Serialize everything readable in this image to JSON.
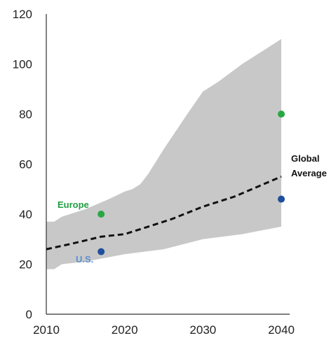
{
  "chart_data": {
    "type": "line",
    "title": "",
    "xlabel": "",
    "ylabel": "",
    "xlim": [
      2010,
      2040
    ],
    "ylim": [
      0,
      120
    ],
    "x_ticks": [
      2010,
      2020,
      2030,
      2040
    ],
    "y_ticks": [
      0,
      20,
      40,
      60,
      80,
      100,
      120
    ],
    "grid": false,
    "band": {
      "color": "#c8c8c8",
      "upper": [
        [
          2010,
          37
        ],
        [
          2011,
          37
        ],
        [
          2012,
          39
        ],
        [
          2015,
          42
        ],
        [
          2018,
          46
        ],
        [
          2020,
          49
        ],
        [
          2021,
          50
        ],
        [
          2022,
          52
        ],
        [
          2023,
          56
        ],
        [
          2025,
          66
        ],
        [
          2028,
          80
        ],
        [
          2030,
          89
        ],
        [
          2032,
          93
        ],
        [
          2035,
          100
        ],
        [
          2038,
          106
        ],
        [
          2040,
          110
        ]
      ],
      "lower": [
        [
          2010,
          18
        ],
        [
          2011,
          18
        ],
        [
          2012,
          20
        ],
        [
          2015,
          21
        ],
        [
          2020,
          24
        ],
        [
          2025,
          26
        ],
        [
          2030,
          30
        ],
        [
          2035,
          32
        ],
        [
          2040,
          35
        ]
      ]
    },
    "series": [
      {
        "name": "Global Average",
        "color": "#111111",
        "style": "dashed",
        "points": [
          [
            2010,
            26
          ],
          [
            2013,
            28
          ],
          [
            2017,
            31
          ],
          [
            2020,
            32
          ],
          [
            2023,
            35
          ],
          [
            2026,
            38
          ],
          [
            2030,
            43
          ],
          [
            2034,
            47
          ],
          [
            2037,
            51
          ],
          [
            2040,
            55
          ]
        ]
      }
    ],
    "points": [
      {
        "label": "Europe",
        "color": "#27a844",
        "label_color": "#1f9e40",
        "points": [
          [
            2017,
            40
          ],
          [
            2040,
            80
          ]
        ]
      },
      {
        "label": "U.S.",
        "color": "#1f4e9c",
        "label_color": "#5b8fd0",
        "points": [
          [
            2017,
            25
          ],
          [
            2040,
            46
          ]
        ]
      }
    ],
    "annotations": [
      {
        "lines": [
          "Global",
          "Average"
        ],
        "color": "#111111"
      },
      {
        "lines": [
          "Europe"
        ],
        "color": "#1f9e40"
      },
      {
        "lines": [
          "U.S."
        ],
        "color": "#5b8fd0"
      }
    ]
  }
}
